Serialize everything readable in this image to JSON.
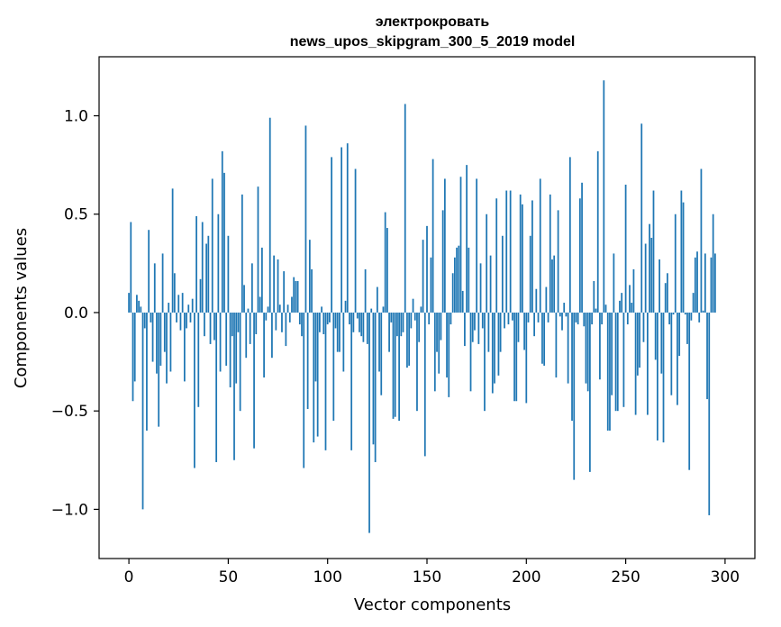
{
  "chart_data": {
    "type": "bar",
    "title_line1": "электрокровать",
    "title_line2": "news_upos_skipgram_300_5_2019 model",
    "xlabel": "Vector components",
    "ylabel": "Components values",
    "xlim": [
      -15,
      315
    ],
    "ylim": [
      -1.25,
      1.3
    ],
    "x_ticks": [
      0,
      50,
      100,
      150,
      200,
      250,
      300
    ],
    "x_tick_labels": [
      "0",
      "50",
      "100",
      "150",
      "200",
      "250",
      "300"
    ],
    "y_ticks": [
      -1.0,
      -0.5,
      0.0,
      0.5,
      1.0
    ],
    "y_tick_labels": [
      "−1.0",
      "−0.5",
      "0.0",
      "0.5",
      "1.0"
    ],
    "bar_color": "#1f77b4",
    "values": [
      0.1,
      0.46,
      -0.45,
      -0.35,
      0.09,
      0.06,
      0.03,
      -1.0,
      -0.08,
      -0.6,
      0.42,
      -0.05,
      -0.25,
      0.25,
      -0.31,
      -0.58,
      -0.27,
      0.3,
      -0.2,
      -0.36,
      0.05,
      -0.3,
      0.63,
      0.2,
      -0.05,
      0.09,
      -0.09,
      0.1,
      -0.35,
      -0.08,
      0.04,
      -0.05,
      0.07,
      -0.79,
      0.49,
      -0.48,
      0.17,
      0.46,
      -0.12,
      0.35,
      0.39,
      -0.16,
      0.68,
      -0.14,
      -0.76,
      0.5,
      -0.3,
      0.82,
      0.71,
      -0.27,
      0.39,
      -0.38,
      -0.12,
      -0.75,
      -0.36,
      -0.1,
      -0.5,
      0.6,
      0.14,
      -0.23,
      0.02,
      -0.16,
      0.25,
      -0.69,
      -0.11,
      0.64,
      0.08,
      0.33,
      -0.33,
      -0.04,
      0.03,
      0.99,
      -0.23,
      0.29,
      -0.09,
      0.27,
      0.04,
      -0.1,
      0.21,
      -0.17,
      0.04,
      -0.05,
      0.08,
      0.18,
      0.16,
      0.16,
      -0.06,
      -0.12,
      -0.79,
      0.95,
      -0.49,
      0.37,
      0.22,
      -0.66,
      -0.35,
      -0.63,
      -0.1,
      0.03,
      -0.11,
      -0.7,
      -0.06,
      -0.05,
      0.79,
      -0.55,
      -0.08,
      -0.2,
      -0.2,
      0.84,
      -0.3,
      0.06,
      0.86,
      -0.06,
      -0.7,
      -0.1,
      0.73,
      -0.03,
      -0.1,
      -0.12,
      -0.15,
      0.22,
      -0.16,
      -1.12,
      0.02,
      -0.67,
      -0.76,
      0.13,
      -0.3,
      -0.42,
      0.03,
      0.51,
      0.43,
      -0.2,
      -0.05,
      -0.54,
      -0.53,
      -0.12,
      -0.55,
      -0.12,
      -0.1,
      1.06,
      -0.28,
      -0.27,
      -0.08,
      0.07,
      -0.04,
      -0.5,
      -0.15,
      0.03,
      0.37,
      -0.73,
      0.44,
      -0.06,
      0.28,
      0.78,
      -0.4,
      -0.2,
      -0.31,
      -0.14,
      0.52,
      0.68,
      -0.33,
      -0.43,
      -0.06,
      0.2,
      0.28,
      0.33,
      0.34,
      0.69,
      0.11,
      -0.17,
      0.75,
      0.33,
      -0.4,
      -0.15,
      -0.09,
      0.68,
      -0.16,
      0.25,
      -0.08,
      -0.5,
      0.5,
      -0.2,
      0.29,
      -0.41,
      -0.36,
      0.58,
      -0.32,
      -0.2,
      0.39,
      -0.08,
      0.62,
      -0.06,
      0.62,
      -0.04,
      -0.45,
      -0.45,
      -0.15,
      0.6,
      0.55,
      -0.19,
      -0.46,
      -0.05,
      0.39,
      0.57,
      -0.12,
      0.12,
      -0.05,
      0.68,
      -0.26,
      -0.27,
      0.13,
      -0.05,
      0.6,
      0.27,
      0.29,
      -0.33,
      0.52,
      -0.02,
      -0.09,
      0.05,
      -0.02,
      -0.36,
      0.79,
      -0.55,
      -0.85,
      -0.05,
      -0.06,
      0.58,
      0.66,
      -0.07,
      -0.36,
      -0.4,
      -0.81,
      -0.06,
      0.16,
      0.02,
      0.82,
      -0.34,
      -0.06,
      1.18,
      0.04,
      -0.6,
      -0.6,
      -0.42,
      0.3,
      -0.5,
      -0.5,
      0.06,
      0.1,
      -0.48,
      0.65,
      -0.06,
      0.14,
      0.05,
      0.22,
      -0.52,
      -0.32,
      -0.28,
      0.96,
      -0.15,
      0.35,
      -0.52,
      0.45,
      0.38,
      0.62,
      -0.24,
      -0.65,
      0.27,
      -0.31,
      -0.66,
      0.15,
      0.2,
      -0.06,
      -0.42,
      -0.01,
      0.5,
      -0.47,
      -0.22,
      0.62,
      0.56,
      -0.01,
      -0.16,
      -0.8,
      -0.04,
      0.1,
      0.28,
      0.31,
      -0.05,
      0.73,
      0.01,
      0.3,
      -0.44,
      -1.03,
      0.28,
      0.5,
      0.3
    ]
  }
}
